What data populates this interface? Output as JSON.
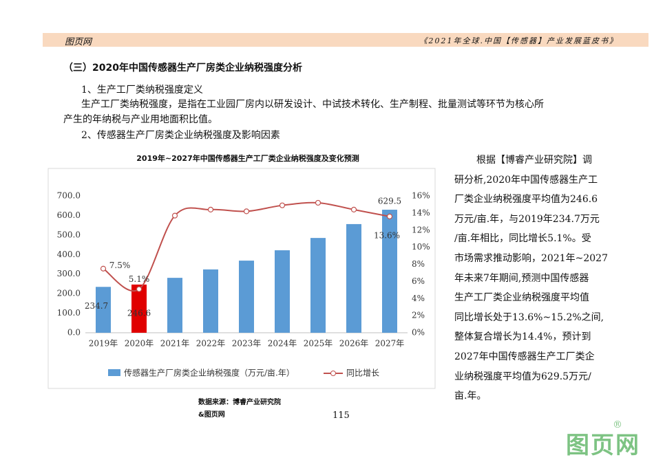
{
  "header": {
    "left": "图页网",
    "right": "《2021年全球.中国【传感器】产业发展蓝皮书》"
  },
  "section_title": "（三）2020年中国传感器生产厂房类企业纳税强度分析",
  "sub1": "1、生产工厂类纳税强度定义",
  "para1": [
    "生产工厂类纳税强度，是指在工业园厂房内以研发设计、中试技术转化、生产制程、批量测试等环节为核心所",
    "产生的年纳税与产业用地面积比值。"
  ],
  "sub2": "2、传感器生产厂房类企业纳税强度及影响因素",
  "chart_data": {
    "type": "bar-line",
    "title": "2019年~2027年中国传感器生产工厂类企业纳税强度及变化预测",
    "categories": [
      "2019年",
      "2020年",
      "2021年",
      "2022年",
      "2023年",
      "2024年",
      "2025年",
      "2026年",
      "2027年"
    ],
    "series": [
      {
        "name": "传感器生产厂房类企业纳税强度（万元/亩.年）",
        "type": "bar",
        "color": "#5b9bd5",
        "colors": [
          "#5b9bd5",
          "#e00000",
          "#5b9bd5",
          "#5b9bd5",
          "#5b9bd5",
          "#5b9bd5",
          "#5b9bd5",
          "#5b9bd5",
          "#5b9bd5"
        ],
        "values": [
          234.7,
          246.6,
          281,
          324,
          369,
          422,
          485,
          556,
          629.5
        ],
        "value_labels": [
          "234.7",
          "246.6",
          null,
          null,
          null,
          null,
          null,
          null,
          "629.5"
        ]
      },
      {
        "name": "同比增长",
        "type": "line",
        "axis": "y2",
        "color": "#c0504d",
        "values": [
          7.5,
          5.1,
          13.7,
          14.4,
          14.2,
          14.9,
          15.2,
          14.4,
          13.6
        ],
        "value_labels": [
          "7.5%",
          "5.1%",
          null,
          null,
          null,
          null,
          null,
          null,
          "13.6%"
        ]
      }
    ],
    "ylim": [
      0,
      700
    ],
    "yticks": [
      {
        "value": 0,
        "label": "0.0"
      },
      {
        "value": 100,
        "label": "100.0"
      },
      {
        "value": 200,
        "label": "200.0"
      },
      {
        "value": 300,
        "label": "300.0"
      },
      {
        "value": 400,
        "label": "400.0"
      },
      {
        "value": 500,
        "label": "500.0"
      },
      {
        "value": 600,
        "label": "600.0"
      },
      {
        "value": 700,
        "label": "700.0"
      }
    ],
    "y2lim": [
      0,
      16
    ],
    "y2ticks": [
      {
        "value": 0,
        "label": "0%"
      },
      {
        "value": 2,
        "label": "2%"
      },
      {
        "value": 4,
        "label": "4%"
      },
      {
        "value": 6,
        "label": "6%"
      },
      {
        "value": 8,
        "label": "8%"
      },
      {
        "value": 10,
        "label": "10%"
      },
      {
        "value": 12,
        "label": "12%"
      },
      {
        "value": 14,
        "label": "14%"
      },
      {
        "value": 16,
        "label": "16%"
      }
    ],
    "legend": "bottom",
    "source": [
      "数据来源：博睿产业研究院",
      "&图页网"
    ]
  },
  "side_text": [
    "根据【博睿产业研究院】调",
    "研分析,2020年中国传感器生产工",
    "厂类企业纳税强度平均值为246.6",
    "万元/亩.年，与2019年234.7万元",
    "/亩.年相比，同比增长5.1%。受",
    "市场需求推动影响，2021年~2027",
    "年未来7年期间,预测中国传感器",
    "生产工厂类企业纳税强度平均值",
    "同比增长处于13.6%~15.2%之间,",
    "整体复合增长为14.4%，预计到",
    "2027年中国传感器生产工厂类企",
    "业纳税强度平均值为629.5万元/",
    "亩.年。"
  ],
  "page_number": "115",
  "watermark": "图页网"
}
